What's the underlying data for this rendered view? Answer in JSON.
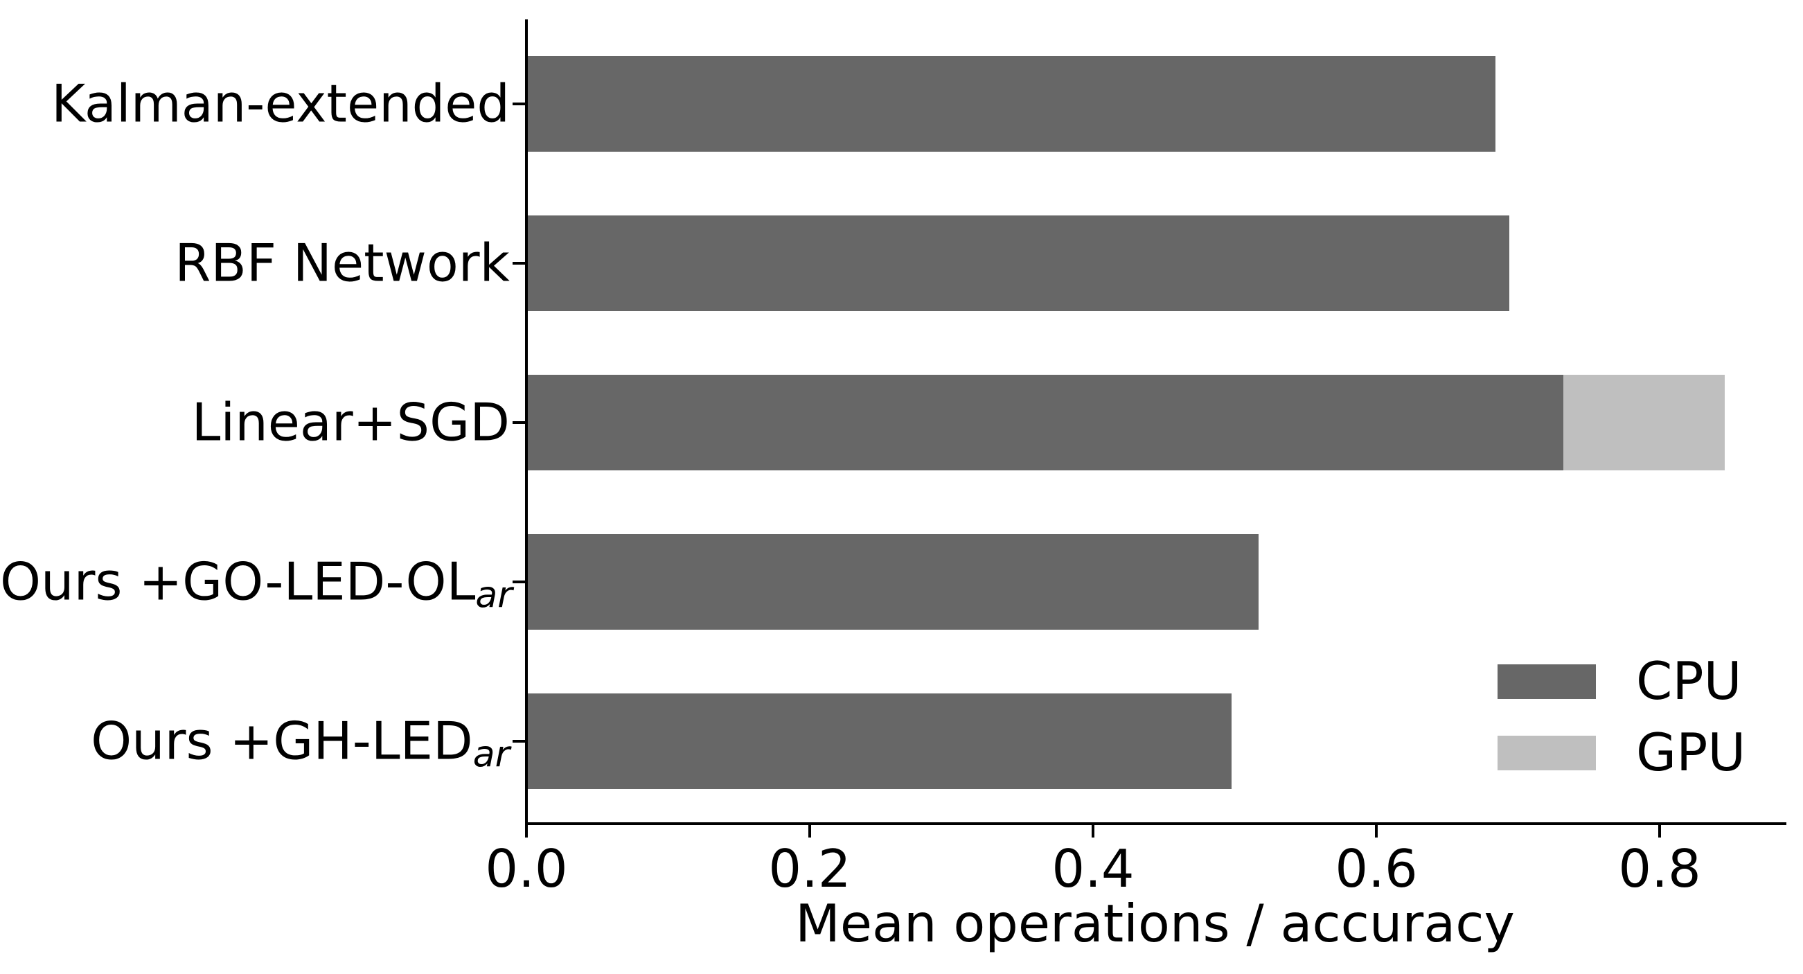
{
  "figure": {
    "background": "#ffffff",
    "text_color": "#000000",
    "axis_color": "#000000"
  },
  "chart_data": {
    "type": "bar",
    "orientation": "horizontal",
    "stacked": true,
    "title": "",
    "xlabel": "Mean operations / accuracy",
    "ylabel": "",
    "xlim": [
      0,
      0.8875
    ],
    "grid": false,
    "categories": [
      {
        "label": "Kalman-extended",
        "subscript": ""
      },
      {
        "label": "RBF Network",
        "subscript": ""
      },
      {
        "label": "Linear+SGD",
        "subscript": ""
      },
      {
        "label": "Ours +GO-LED-OL",
        "subscript": "ar"
      },
      {
        "label": "Ours +GH-LED",
        "subscript": "ar"
      }
    ],
    "series": [
      {
        "name": "CPU",
        "color": "#676767",
        "values": [
          0.683,
          0.693,
          0.731,
          0.516,
          0.497
        ]
      },
      {
        "name": "GPU",
        "color": "#bfbfbf",
        "values": [
          0,
          0,
          0.114,
          0,
          0
        ]
      }
    ],
    "xticks": [
      0.0,
      0.2,
      0.4,
      0.6,
      0.8
    ],
    "xtick_labels": [
      "0.0",
      "0.2",
      "0.4",
      "0.6",
      "0.8"
    ],
    "legend": {
      "position": "lower right",
      "frame": false,
      "entries": [
        "CPU",
        "GPU"
      ]
    }
  }
}
